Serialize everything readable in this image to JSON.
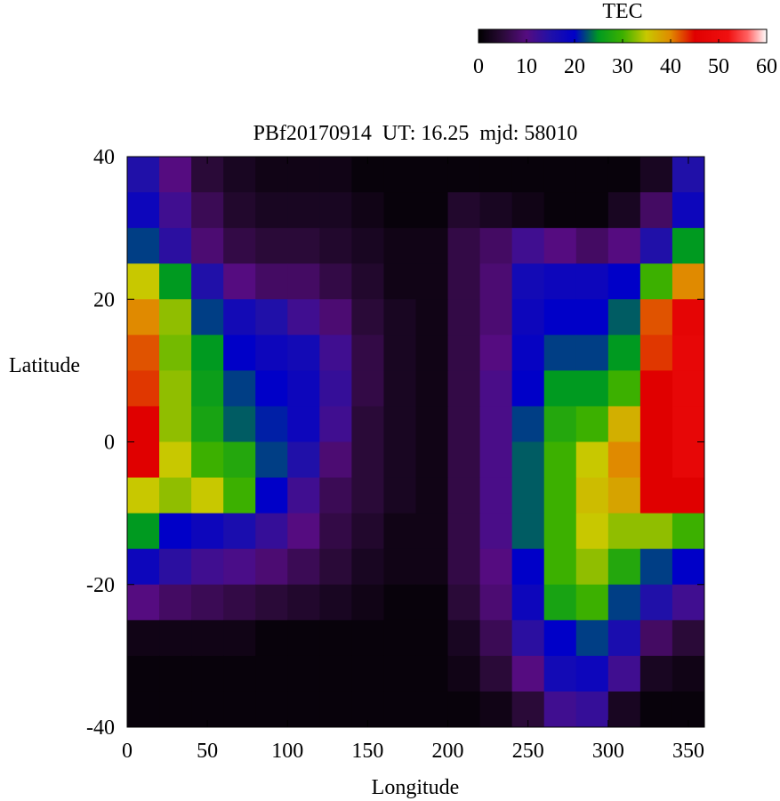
{
  "chart_data": {
    "type": "heatmap",
    "title": "PBf20170914  UT: 16.25  mjd: 58010",
    "xlabel": "Longitude",
    "ylabel": "Latitude",
    "colorbar_label": "TEC",
    "x": [
      10,
      30,
      50,
      70,
      90,
      110,
      130,
      150,
      170,
      190,
      210,
      230,
      250,
      270,
      290,
      310,
      330,
      350
    ],
    "y": [
      37.5,
      32.5,
      27.5,
      22.5,
      17.5,
      12.5,
      7.5,
      2.5,
      -2.5,
      -7.5,
      -12.5,
      -17.5,
      -22.5,
      -27.5,
      -32.5,
      -37.5
    ],
    "values": [
      [
        15,
        10,
        5,
        3,
        2,
        2,
        2,
        1,
        1,
        1,
        1,
        1,
        1,
        1,
        1,
        1,
        3,
        15
      ],
      [
        18,
        12,
        7,
        4,
        3,
        3,
        3,
        2,
        1,
        1,
        4,
        3,
        2,
        1,
        1,
        3,
        8,
        18
      ],
      [
        22,
        14,
        9,
        6,
        5,
        5,
        4,
        3,
        2,
        2,
        6,
        8,
        12,
        10,
        8,
        10,
        15,
        25
      ],
      [
        35,
        25,
        15,
        10,
        8,
        8,
        6,
        4,
        2,
        2,
        6,
        9,
        17,
        18,
        18,
        20,
        30,
        40
      ],
      [
        40,
        33,
        22,
        17,
        15,
        12,
        9,
        5,
        3,
        2,
        6,
        9,
        18,
        20,
        20,
        23,
        42,
        47
      ],
      [
        42,
        32,
        25,
        20,
        18,
        17,
        12,
        6,
        3,
        2,
        6,
        10,
        19,
        22,
        22,
        25,
        43,
        48
      ],
      [
        43,
        33,
        26,
        22,
        20,
        18,
        13,
        6,
        3,
        2,
        6,
        11,
        20,
        25,
        25,
        30,
        45,
        48
      ],
      [
        45,
        33,
        27,
        23,
        21,
        18,
        12,
        5,
        3,
        2,
        6,
        11,
        22,
        28,
        30,
        37,
        45,
        48
      ],
      [
        45,
        35,
        30,
        28,
        22,
        15,
        9,
        5,
        3,
        2,
        6,
        11,
        23,
        30,
        35,
        40,
        45,
        48
      ],
      [
        35,
        33,
        35,
        30,
        20,
        12,
        7,
        5,
        3,
        2,
        6,
        11,
        23,
        30,
        36,
        38,
        45,
        45
      ],
      [
        25,
        20,
        18,
        16,
        13,
        10,
        6,
        4,
        2,
        2,
        6,
        11,
        23,
        30,
        35,
        33,
        33,
        30
      ],
      [
        18,
        14,
        12,
        11,
        9,
        7,
        5,
        3,
        2,
        2,
        6,
        10,
        20,
        30,
        33,
        28,
        22,
        20
      ],
      [
        10,
        8,
        7,
        6,
        5,
        4,
        3,
        2,
        1,
        1,
        5,
        9,
        18,
        27,
        30,
        22,
        15,
        12
      ],
      [
        2,
        2,
        2,
        2,
        1,
        1,
        1,
        1,
        1,
        1,
        3,
        7,
        14,
        20,
        22,
        16,
        8,
        5
      ],
      [
        1,
        1,
        1,
        1,
        1,
        1,
        1,
        1,
        1,
        1,
        2,
        5,
        10,
        17,
        18,
        12,
        3,
        2
      ],
      [
        1,
        1,
        1,
        1,
        1,
        1,
        1,
        1,
        1,
        1,
        1,
        2,
        5,
        12,
        13,
        3,
        1,
        1
      ]
    ],
    "xlim": [
      0,
      360
    ],
    "xticks": [
      0,
      50,
      100,
      150,
      200,
      250,
      300,
      350
    ],
    "ylim": [
      -40,
      40
    ],
    "yticks": [
      -40,
      -20,
      0,
      20,
      40
    ],
    "clim": [
      0,
      60
    ],
    "cticks": [
      0,
      10,
      20,
      30,
      40,
      50,
      60
    ],
    "colormap": [
      [
        0,
        "#000000"
      ],
      [
        5,
        "#2a0a38"
      ],
      [
        10,
        "#550c80"
      ],
      [
        15,
        "#2010a8"
      ],
      [
        20,
        "#0000c8"
      ],
      [
        25,
        "#009a20"
      ],
      [
        30,
        "#3cb000"
      ],
      [
        35,
        "#c8c800"
      ],
      [
        40,
        "#e08a00"
      ],
      [
        45,
        "#e00000"
      ],
      [
        52,
        "#f01010"
      ],
      [
        56,
        "#ff6060"
      ],
      [
        60,
        "#ffffff"
      ]
    ]
  }
}
